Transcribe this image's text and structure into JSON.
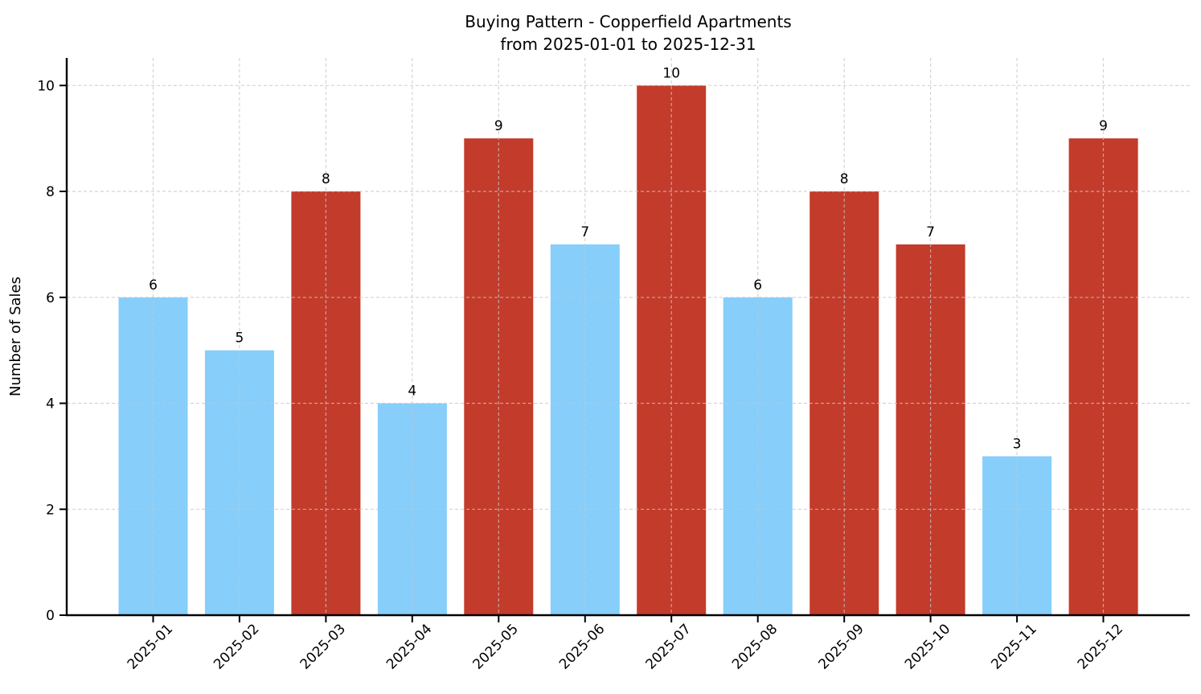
{
  "page": {
    "background": "#ffffff"
  },
  "chart_data": {
    "type": "bar",
    "title": "Buying Pattern - Copperfield Apartments",
    "subtitle": "from 2025-01-01 to 2025-12-31",
    "xlabel": "",
    "ylabel": "Number of Sales",
    "categories": [
      "2025-01",
      "2025-02",
      "2025-03",
      "2025-04",
      "2025-05",
      "2025-06",
      "2025-07",
      "2025-08",
      "2025-09",
      "2025-10",
      "2025-11",
      "2025-12"
    ],
    "series": [
      {
        "name": "Number of Sales",
        "values": [
          6,
          5,
          8,
          4,
          9,
          7,
          10,
          6,
          8,
          7,
          3,
          9
        ]
      }
    ],
    "bar_colors": [
      "#87CEFA",
      "#87CEFA",
      "#C33B2B",
      "#87CEFA",
      "#C33B2B",
      "#87CEFA",
      "#C33B2B",
      "#87CEFA",
      "#C33B2B",
      "#C33B2B",
      "#87CEFA",
      "#C33B2B"
    ],
    "value_labels": [
      "6",
      "5",
      "8",
      "4",
      "9",
      "7",
      "10",
      "6",
      "8",
      "7",
      "3",
      "9"
    ],
    "yticks": [
      0,
      2,
      4,
      6,
      8,
      10
    ],
    "ylim": [
      0,
      10.52
    ],
    "xtick_rotation_deg": 45,
    "grid": "on",
    "grid_style": "dashed",
    "legend": "none",
    "colors": {
      "blue_bar": "#87CEFA",
      "red_bar": "#C33B2B",
      "grid": "#c6c6c6",
      "axis": "#000000",
      "text": "#000000"
    }
  }
}
